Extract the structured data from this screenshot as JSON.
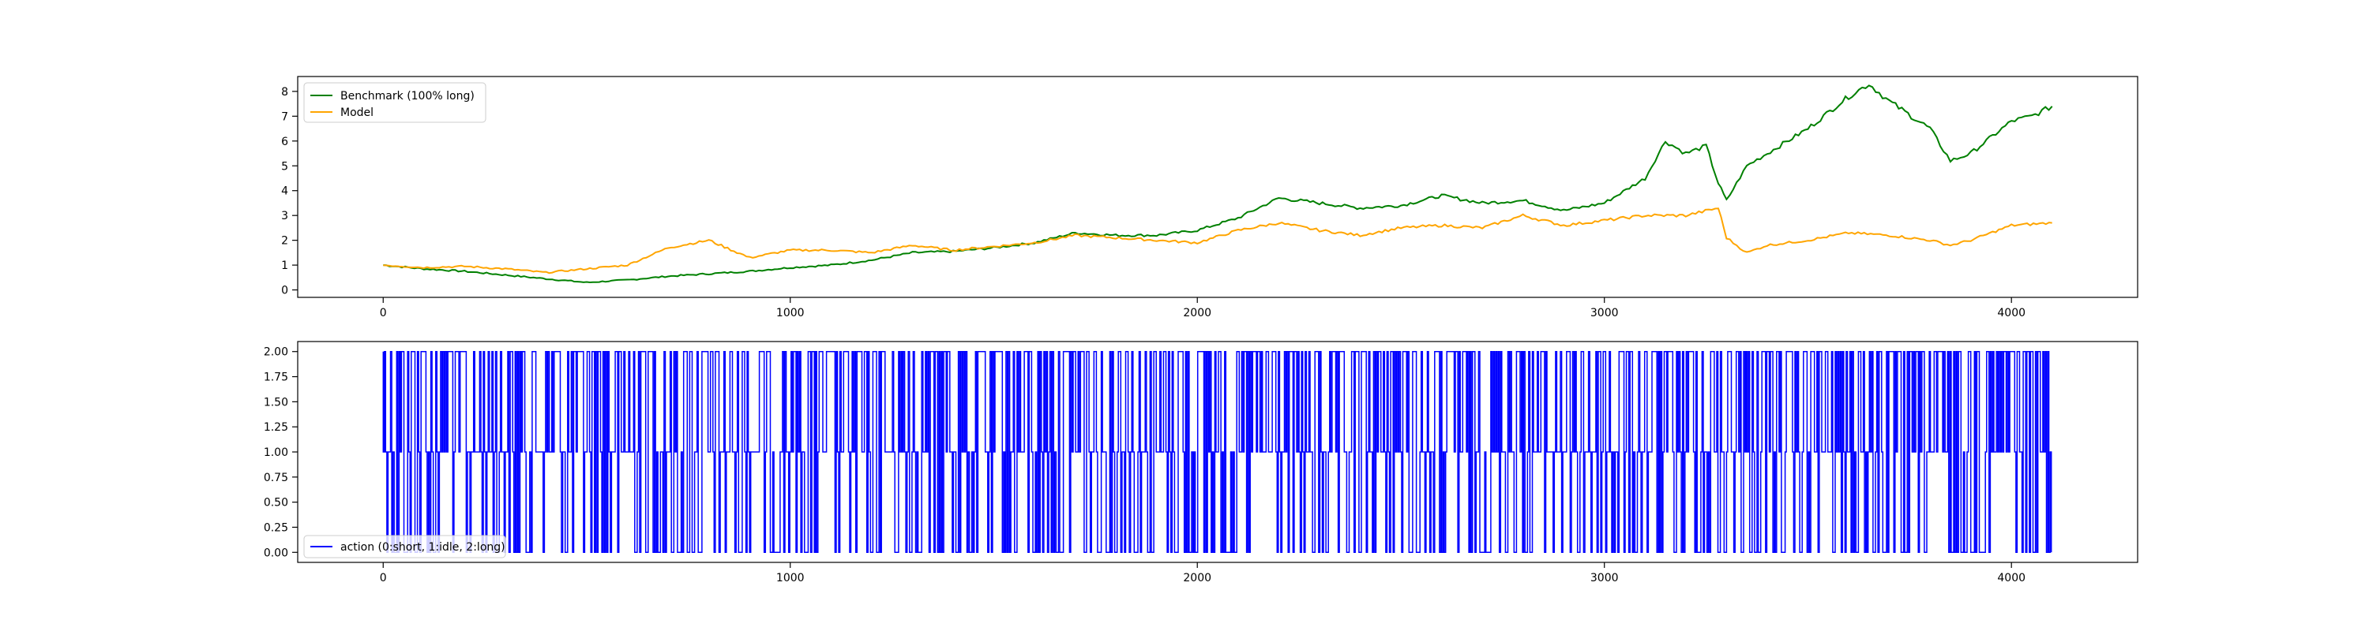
{
  "chart_data": [
    {
      "type": "line",
      "title": "",
      "xlabel": "",
      "ylabel": "",
      "xlim": [
        -210,
        4310
      ],
      "ylim": [
        -0.3,
        8.6
      ],
      "x_ticks": [
        0,
        1000,
        2000,
        3000,
        4000
      ],
      "y_ticks": [
        0,
        1,
        2,
        3,
        4,
        5,
        6,
        7,
        8
      ],
      "grid": false,
      "legend_position": "top-left",
      "series": [
        {
          "name": "Benchmark (100% long)",
          "color": "#008000",
          "x": [
            0,
            100,
            200,
            300,
            400,
            500,
            600,
            700,
            800,
            900,
            1000,
            1100,
            1200,
            1300,
            1400,
            1500,
            1600,
            1700,
            1800,
            1900,
            2000,
            2100,
            2200,
            2300,
            2400,
            2500,
            2600,
            2700,
            2800,
            2900,
            3000,
            3100,
            3150,
            3200,
            3250,
            3280,
            3300,
            3350,
            3400,
            3500,
            3600,
            3650,
            3700,
            3800,
            3850,
            3900,
            4000,
            4050,
            4100
          ],
          "y": [
            1.0,
            0.85,
            0.75,
            0.6,
            0.45,
            0.3,
            0.4,
            0.55,
            0.65,
            0.75,
            0.9,
            1.0,
            1.2,
            1.5,
            1.55,
            1.7,
            1.9,
            2.3,
            2.2,
            2.2,
            2.4,
            2.9,
            3.7,
            3.5,
            3.3,
            3.4,
            3.8,
            3.5,
            3.6,
            3.2,
            3.5,
            4.5,
            6.0,
            5.5,
            5.8,
            4.3,
            3.6,
            5.0,
            5.5,
            6.5,
            7.8,
            8.3,
            7.6,
            6.5,
            5.2,
            5.5,
            6.8,
            7.0,
            7.4
          ]
        },
        {
          "name": "Model",
          "color": "#ffa500",
          "x": [
            0,
            100,
            200,
            300,
            400,
            500,
            600,
            700,
            800,
            900,
            1000,
            1100,
            1200,
            1300,
            1400,
            1500,
            1600,
            1700,
            1800,
            1900,
            2000,
            2100,
            2200,
            2300,
            2400,
            2500,
            2600,
            2700,
            2800,
            2900,
            3000,
            3100,
            3200,
            3280,
            3300,
            3350,
            3400,
            3500,
            3600,
            3700,
            3800,
            3850,
            3900,
            4000,
            4100
          ],
          "y": [
            1.0,
            0.9,
            0.95,
            0.85,
            0.7,
            0.85,
            1.0,
            1.7,
            2.0,
            1.3,
            1.6,
            1.6,
            1.5,
            1.8,
            1.6,
            1.75,
            1.9,
            2.2,
            2.1,
            2.0,
            1.9,
            2.4,
            2.7,
            2.4,
            2.2,
            2.5,
            2.6,
            2.5,
            3.0,
            2.6,
            2.8,
            3.0,
            3.0,
            3.3,
            2.1,
            1.5,
            1.8,
            2.0,
            2.3,
            2.2,
            2.0,
            1.8,
            2.0,
            2.6,
            2.7
          ]
        }
      ]
    },
    {
      "type": "line",
      "title": "",
      "xlabel": "",
      "ylabel": "",
      "xlim": [
        -210,
        4310
      ],
      "ylim": [
        -0.1,
        2.1
      ],
      "x_ticks": [
        0,
        1000,
        2000,
        3000,
        4000
      ],
      "y_ticks": [
        0.0,
        0.25,
        0.5,
        0.75,
        1.0,
        1.25,
        1.5,
        1.75,
        2.0
      ],
      "y_tick_labels": [
        "0.00",
        "0.25",
        "0.50",
        "0.75",
        "1.00",
        "1.25",
        "1.50",
        "1.75",
        "2.00"
      ],
      "grid": false,
      "legend_position": "bottom-left",
      "series": [
        {
          "name": "action (0:short, 1:idle, 2:long)",
          "color": "#0000ff",
          "x_range": [
            0,
            4100
          ],
          "values_set": [
            0,
            1,
            2
          ],
          "description_of_values": "discrete action per step, switching frequently between 0, 1 and 2"
        }
      ]
    }
  ]
}
